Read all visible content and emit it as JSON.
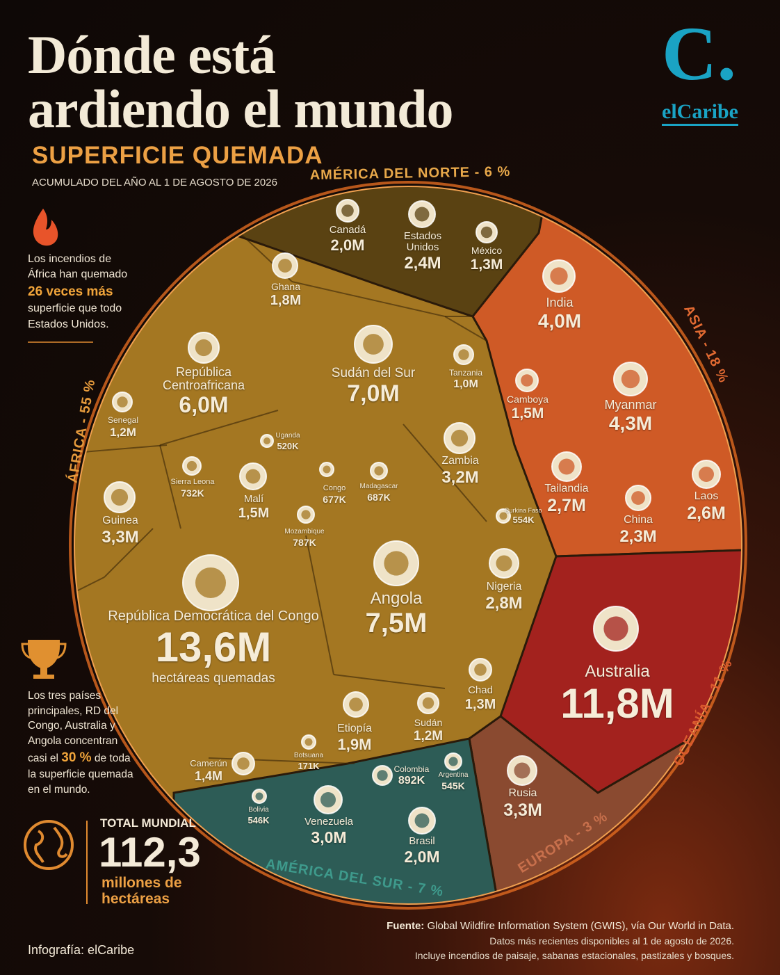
{
  "chart_data": {
    "type": "voronoi-treemap",
    "title_lines": [
      "Dónde está",
      "ardiendo el mundo"
    ],
    "subtitle": "SUPERFICIE QUEMADA",
    "date_note": "ACUMULADO DEL AÑO AL 1 DE AGOSTO DE 2026",
    "unit_note": "hectáreas quemadas",
    "series": [
      {
        "name": "ÁFRICA - 55 %",
        "color": "#a47722",
        "categories": [
          "República Democrática del Congo",
          "Angola",
          "Sudán del Sur",
          "República Centroafricana",
          "Guinea",
          "Zambia",
          "Nigeria",
          "Etiopía",
          "Ghana",
          "Malí",
          "Camerún",
          "Chad",
          "Senegal",
          "Sudán",
          "Tanzania",
          "Mozambique",
          "Sierra Leona",
          "Madagascar",
          "Congo",
          "Burkina Faso",
          "Uganda",
          "Botsuana"
        ],
        "values": [
          13.6,
          7.5,
          7.0,
          6.0,
          3.3,
          3.2,
          2.8,
          1.9,
          1.8,
          1.5,
          1.4,
          1.3,
          1.2,
          1.2,
          1.0,
          0.787,
          0.732,
          0.687,
          0.677,
          0.554,
          0.52,
          0.171
        ],
        "value_labels": [
          "13,6M",
          "7,5M",
          "7,0M",
          "6,0M",
          "3,3M",
          "3,2M",
          "2,8M",
          "1,9M",
          "1,8M",
          "1,5M",
          "1,4M",
          "1,3M",
          "1,2M",
          "1,2M",
          "1,0M",
          "787K",
          "732K",
          "687K",
          "677K",
          "554K",
          "520K",
          "171K"
        ]
      },
      {
        "name": "AMÉRICA DEL NORTE - 6 %",
        "color": "#5a4212",
        "categories": [
          "Canadá",
          "Estados Unidos",
          "México"
        ],
        "values": [
          2.0,
          2.4,
          1.3
        ],
        "value_labels": [
          "2,0M",
          "2,4M",
          "1,3M"
        ]
      },
      {
        "name": "ASIA - 18 %",
        "color": "#cf5a26",
        "categories": [
          "India",
          "Myanmar",
          "Camboya",
          "Tailandia",
          "China",
          "Laos"
        ],
        "values": [
          4.0,
          4.3,
          1.5,
          2.7,
          2.3,
          2.6
        ],
        "value_labels": [
          "4,0M",
          "4,3M",
          "1,5M",
          "2,7M",
          "2,3M",
          "2,6M"
        ]
      },
      {
        "name": "OCEANÍA - 11 %",
        "color": "#a3221e",
        "categories": [
          "Australia"
        ],
        "values": [
          11.8
        ],
        "value_labels": [
          "11,8M"
        ]
      },
      {
        "name": "EUROPA - 3 %",
        "color": "#8a4a30",
        "categories": [
          "Rusia"
        ],
        "values": [
          3.3
        ],
        "value_labels": [
          "3,3M"
        ]
      },
      {
        "name": "AMÉRICA DEL SUR - 7 %",
        "color": "#2d5c56",
        "categories": [
          "Venezuela",
          "Brasil",
          "Colombia",
          "Argentina",
          "Bolivia"
        ],
        "values": [
          3.0,
          2.0,
          0.892,
          0.545,
          0.546
        ],
        "value_labels": [
          "3,0M",
          "2,0M",
          "892K",
          "545K",
          "546K"
        ]
      }
    ],
    "side_notes": [
      {
        "parts": [
          "Los incendios de África han quemado ",
          "26 veces más",
          " superficie que todo Estados Unidos."
        ]
      },
      {
        "parts": [
          "Los tres países principales, RD del Congo, Australia y Angola concentran casi el ",
          "30 %",
          " de toda la superficie quemada en el mundo."
        ]
      }
    ],
    "total": {
      "label": "TOTAL MUNDIAL",
      "value": "112,3",
      "unit": "millones de hectáreas"
    },
    "source": {
      "label": "Fuente:",
      "text": "Global Wildfire Information System (GWIS), vía Our World in Data.",
      "lines": [
        "Datos más recientes disponibles al 1 de agosto de 2026.",
        "Incluye incendios de paisaje, sabanas estacionales, pastizales y bosques."
      ]
    },
    "credit": "Infografía: elCaribe",
    "logo": {
      "mark": "C.",
      "name": "elCaribe"
    }
  }
}
